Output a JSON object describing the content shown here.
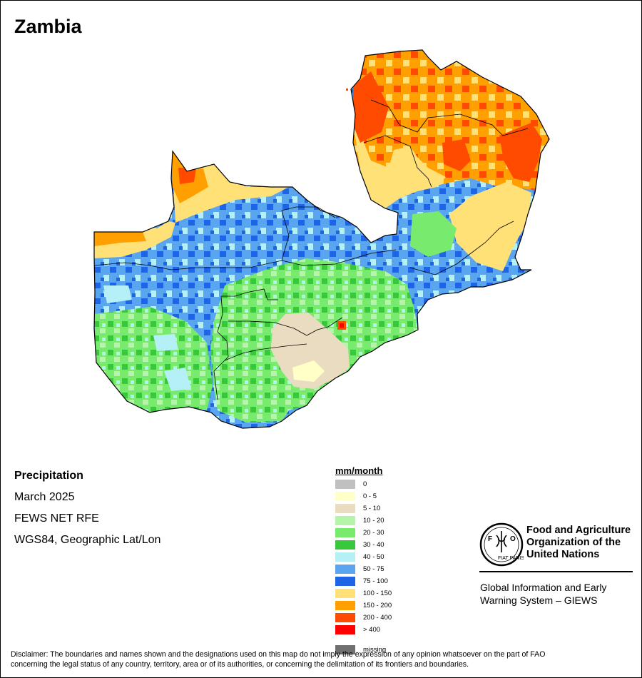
{
  "title": "Zambia",
  "info": {
    "variable": "Precipitation",
    "period": "March 2025",
    "source": "FEWS NET RFE",
    "projection": "WGS84, Geographic Lat/Lon"
  },
  "legend": {
    "unit": "mm/month",
    "classes": [
      {
        "label": "0",
        "color": "#c0c0c0"
      },
      {
        "label": "0 - 5",
        "color": "#ffffc8"
      },
      {
        "label": "5 - 10",
        "color": "#eadcc0"
      },
      {
        "label": "10 - 20",
        "color": "#b4f5aa"
      },
      {
        "label": "20 - 30",
        "color": "#78eb6e"
      },
      {
        "label": "30 - 40",
        "color": "#38c83c"
      },
      {
        "label": "40 - 50",
        "color": "#b4f0f5"
      },
      {
        "label": "50 - 75",
        "color": "#5aa5f0"
      },
      {
        "label": "75 - 100",
        "color": "#1e64e6"
      },
      {
        "label": "100 - 150",
        "color": "#ffe178"
      },
      {
        "label": "150 - 200",
        "color": "#ffa000"
      },
      {
        "label": "200 - 400",
        "color": "#ff4b00"
      },
      {
        "label": "> 400",
        "color": "#ff0000"
      }
    ],
    "missing": {
      "label": "missing",
      "color": "#707070"
    }
  },
  "logo": {
    "name_line1": "Food and Agriculture",
    "name_line2": "Organization of the",
    "name_line3": "United Nations",
    "emblem_text": "FIAT PANIS",
    "emblem_letters": "FAO",
    "system_line1": "Global Information and Early",
    "system_line2": "Warning System – GIEWS"
  },
  "disclaimer_line1": "Disclaimer: The boundaries and names shown and the designations used on this map do not imply the expression of any opinion whatsoever on the part of FAO",
  "disclaimer_line2": "concerning the legal status of any country, territory, area or of its authorities, or concerning the delimitation of its frontiers and boundaries."
}
